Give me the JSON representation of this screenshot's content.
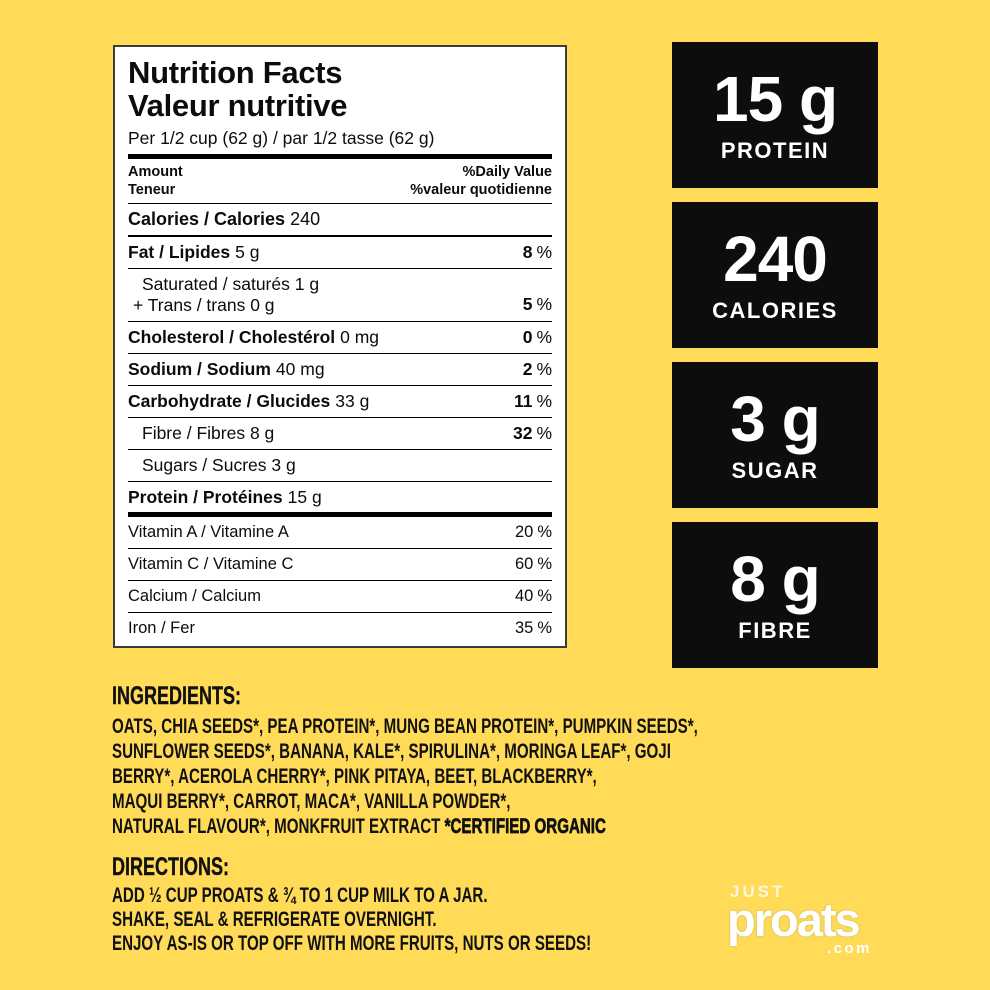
{
  "colors": {
    "background": "#FFDB58",
    "badge_background": "#0D0D0D",
    "badge_text": "#FFFFFF",
    "label_background": "#FFFFFF",
    "text": "#111111"
  },
  "label": {
    "title_en": "Nutrition Facts",
    "title_fr": "Valeur nutritive",
    "serving": "Per 1/2 cup (62 g) / par 1/2 tasse (62 g)",
    "columns": {
      "amount_en": "Amount",
      "amount_fr": "Teneur",
      "dv_en": "%Daily Value",
      "dv_fr": "%valeur quotidienne"
    },
    "percent_sign": "%",
    "calories": {
      "name": "Calories / Calories",
      "value": "240"
    },
    "rows": [
      {
        "name": "Fat / Lipides",
        "amount": "5 g",
        "dv": "8"
      },
      {
        "line1": "Saturated / saturés 1 g",
        "line2": "+ Trans / trans 0 g",
        "dv": "5"
      },
      {
        "name": "Cholesterol / Cholestérol",
        "amount": "0 mg",
        "dv": "0"
      },
      {
        "name": "Sodium / Sodium",
        "amount": "40 mg",
        "dv": "2"
      },
      {
        "name": "Carbohydrate / Glucides",
        "amount": "33 g",
        "dv": "11"
      },
      {
        "name": "Fibre / Fibres 8 g",
        "dv": "32"
      },
      {
        "name": "Sugars / Sucres 3 g"
      },
      {
        "name": "Protein / Protéines",
        "amount": "15 g"
      }
    ],
    "vitamins": [
      {
        "name": "Vitamin A / Vitamine A",
        "dv": "20"
      },
      {
        "name": "Vitamin C / Vitamine C",
        "dv": "60"
      },
      {
        "name": "Calcium / Calcium",
        "dv": "40"
      },
      {
        "name": "Iron / Fer",
        "dv": "35"
      }
    ]
  },
  "badges": [
    {
      "value": "15 g",
      "label": "PROTEIN"
    },
    {
      "value": "240",
      "label": "CALORIES"
    },
    {
      "value": "3 g",
      "label": "SUGAR"
    },
    {
      "value": "8 g",
      "label": "FIBRE"
    }
  ],
  "ingredients": {
    "heading": "INGREDIENTS:",
    "lines": [
      "OATS, CHIA SEEDS*, PEA PROTEIN*, MUNG BEAN PROTEIN*, PUMPKIN SEEDS*,",
      "SUNFLOWER SEEDS*, BANANA, KALE*, SPIRULINA*, MORINGA LEAF*, GOJI",
      "BERRY*, ACEROLA CHERRY*, PINK PITAYA, BEET, BLACKBERRY*,",
      "MAQUI BERRY*, CARROT, MACA*, VANILLA POWDER*,",
      "NATURAL FLAVOUR*, MONKFRUIT EXTRACT "
    ],
    "certified": "*CERTIFIED ORGANIC"
  },
  "directions": {
    "heading": "DIRECTIONS:",
    "lines": [
      "ADD ½ CUP PROATS & ¾ TO 1 CUP MILK TO A JAR.",
      "SHAKE, SEAL & REFRIGERATE OVERNIGHT.",
      "ENJOY AS-IS OR TOP OFF WITH MORE FRUITS, NUTS OR SEEDS!"
    ]
  },
  "logo": {
    "just": "JUST",
    "name": "proats",
    "tld": ".com"
  }
}
